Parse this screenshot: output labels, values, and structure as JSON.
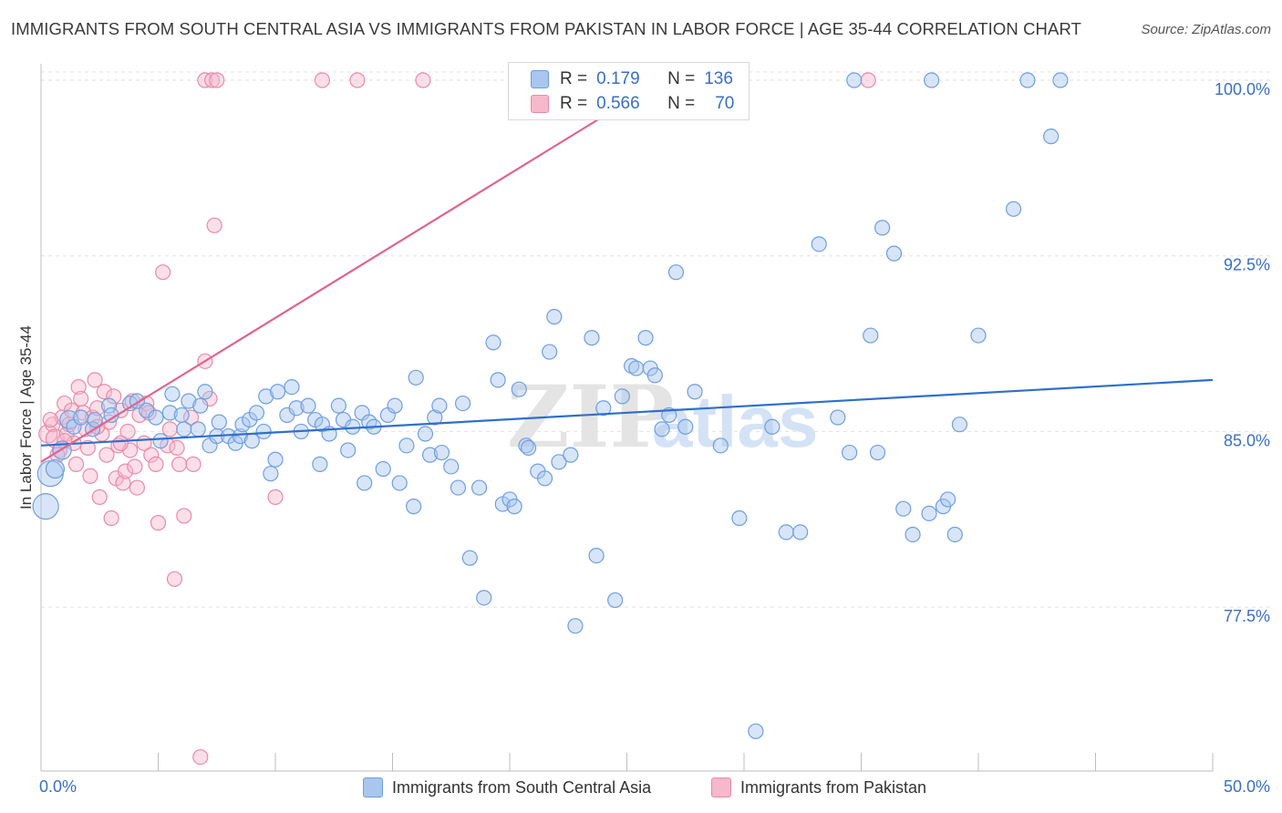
{
  "header": {
    "title": "IMMIGRANTS FROM SOUTH CENTRAL ASIA VS IMMIGRANTS FROM PAKISTAN IN LABOR FORCE | AGE 35-44 CORRELATION CHART",
    "source": "Source: ZipAtlas.com"
  },
  "watermark": {
    "zip": "ZIP",
    "atlas": "atlas"
  },
  "stats_legend": {
    "r_label": "R =",
    "n_label": "N =",
    "blue": {
      "r": "0.179",
      "n": "136"
    },
    "pink": {
      "r": "0.566",
      "n": "70"
    }
  },
  "colors": {
    "blue_fill": "#a9c6ef",
    "blue_stroke": "#6e9fe0",
    "blue_line": "#2f6fcc",
    "pink_fill": "#f6b8cb",
    "pink_stroke": "#ea8aa9",
    "pink_line": "#e0648e",
    "tick_text": "#3a6fc4",
    "grid": "#e2e2e2"
  },
  "chart_data": {
    "type": "scatter",
    "title": "IMMIGRANTS FROM SOUTH CENTRAL ASIA VS IMMIGRANTS FROM PAKISTAN IN LABOR FORCE | AGE 35-44 CORRELATION CHART",
    "xlabel": "",
    "ylabel": "In Labor Force | Age 35-44",
    "xlim": [
      0,
      50
    ],
    "ylim": [
      70.5,
      100.7
    ],
    "x_tick_labels": [
      "0.0%",
      "50.0%"
    ],
    "y_ticks": [
      77.5,
      85.0,
      92.5,
      100.0
    ],
    "y_tick_labels": [
      "77.5%",
      "85.0%",
      "92.5%",
      "100.0%"
    ],
    "grid": "horizontal dashed",
    "legend_position": "top-center and bottom",
    "series": [
      {
        "name": "Immigrants from South Central Asia",
        "color": "#6e9fe0",
        "r": 0.179,
        "n": 136,
        "trend": {
          "x": [
            0,
            50
          ],
          "y": [
            84.4,
            87.2
          ]
        },
        "points": [
          [
            0.2,
            81.8,
            2
          ],
          [
            0.4,
            83.2,
            2
          ],
          [
            0.6,
            83.4,
            1
          ],
          [
            0.9,
            84.2,
            1
          ],
          [
            1.2,
            85.5,
            1
          ],
          [
            1.4,
            85.2,
            0
          ],
          [
            1.7,
            85.6,
            0
          ],
          [
            2.2,
            85.1,
            0
          ],
          [
            2.3,
            85.5,
            0
          ],
          [
            2.9,
            86.1,
            0
          ],
          [
            3.0,
            85.7,
            0
          ],
          [
            3.8,
            86.2,
            0
          ],
          [
            4.1,
            86.3,
            0
          ],
          [
            4.5,
            85.9,
            0
          ],
          [
            4.9,
            85.6,
            0
          ],
          [
            5.1,
            84.6,
            0
          ],
          [
            5.5,
            85.8,
            0
          ],
          [
            5.6,
            86.6,
            0
          ],
          [
            6.0,
            85.7,
            0
          ],
          [
            6.1,
            85.1,
            0
          ],
          [
            6.3,
            86.3,
            0
          ],
          [
            6.7,
            85.1,
            0
          ],
          [
            6.8,
            86.1,
            0
          ],
          [
            7.0,
            86.7,
            0
          ],
          [
            7.2,
            84.4,
            0
          ],
          [
            7.5,
            84.8,
            0
          ],
          [
            7.6,
            85.4,
            0
          ],
          [
            8.0,
            84.8,
            0
          ],
          [
            8.3,
            84.5,
            0
          ],
          [
            8.5,
            84.8,
            0
          ],
          [
            8.6,
            85.3,
            0
          ],
          [
            8.9,
            85.5,
            0
          ],
          [
            9.0,
            84.6,
            0
          ],
          [
            9.2,
            85.8,
            0
          ],
          [
            9.5,
            85.0,
            0
          ],
          [
            9.6,
            86.5,
            0
          ],
          [
            9.8,
            83.2,
            0
          ],
          [
            10.0,
            83.8,
            0
          ],
          [
            10.1,
            86.7,
            0
          ],
          [
            10.5,
            85.7,
            0
          ],
          [
            10.7,
            86.9,
            0
          ],
          [
            10.9,
            86.0,
            0
          ],
          [
            11.1,
            85.0,
            0
          ],
          [
            11.4,
            86.1,
            0
          ],
          [
            11.7,
            85.5,
            0
          ],
          [
            11.9,
            83.6,
            0
          ],
          [
            12.0,
            85.3,
            0
          ],
          [
            12.3,
            84.9,
            0
          ],
          [
            12.7,
            86.1,
            0
          ],
          [
            12.9,
            85.5,
            0
          ],
          [
            13.1,
            84.2,
            0
          ],
          [
            13.3,
            85.2,
            0
          ],
          [
            13.7,
            85.8,
            0
          ],
          [
            13.8,
            82.8,
            0
          ],
          [
            14.0,
            85.4,
            0
          ],
          [
            14.2,
            85.2,
            0
          ],
          [
            14.6,
            83.4,
            0
          ],
          [
            14.8,
            85.7,
            0
          ],
          [
            15.1,
            86.1,
            0
          ],
          [
            15.3,
            82.8,
            0
          ],
          [
            15.6,
            84.4,
            0
          ],
          [
            15.9,
            81.8,
            0
          ],
          [
            16.0,
            87.3,
            0
          ],
          [
            16.4,
            84.9,
            0
          ],
          [
            16.6,
            84.0,
            0
          ],
          [
            16.8,
            85.6,
            0
          ],
          [
            17.0,
            86.1,
            0
          ],
          [
            17.1,
            84.1,
            0
          ],
          [
            17.5,
            83.5,
            0
          ],
          [
            17.8,
            82.6,
            0
          ],
          [
            18.0,
            86.2,
            0
          ],
          [
            18.3,
            79.6,
            0
          ],
          [
            18.7,
            82.6,
            0
          ],
          [
            18.9,
            77.9,
            0
          ],
          [
            19.3,
            88.8,
            0
          ],
          [
            19.5,
            87.2,
            0
          ],
          [
            19.7,
            81.9,
            0
          ],
          [
            20.0,
            82.1,
            0
          ],
          [
            20.2,
            81.8,
            0
          ],
          [
            20.4,
            86.8,
            0
          ],
          [
            20.7,
            84.4,
            0
          ],
          [
            20.8,
            84.3,
            0
          ],
          [
            21.2,
            83.3,
            0
          ],
          [
            21.5,
            83.0,
            0
          ],
          [
            21.7,
            88.4,
            0
          ],
          [
            21.9,
            89.9,
            0
          ],
          [
            22.1,
            83.7,
            0
          ],
          [
            22.6,
            84.0,
            0
          ],
          [
            22.8,
            76.7,
            0
          ],
          [
            23.5,
            89.0,
            0
          ],
          [
            23.7,
            79.7,
            0
          ],
          [
            24.0,
            86.0,
            0
          ],
          [
            24.5,
            77.8,
            0
          ],
          [
            24.8,
            86.5,
            0
          ],
          [
            25.2,
            87.8,
            0
          ],
          [
            25.4,
            87.7,
            0
          ],
          [
            25.8,
            89.0,
            0
          ],
          [
            26.0,
            87.7,
            0
          ],
          [
            26.2,
            87.4,
            0
          ],
          [
            26.5,
            85.1,
            0
          ],
          [
            26.8,
            85.7,
            0
          ],
          [
            27.1,
            91.8,
            0
          ],
          [
            27.5,
            85.2,
            0
          ],
          [
            27.9,
            86.7,
            0
          ],
          [
            28.2,
            100.0,
            0
          ],
          [
            29.0,
            84.4,
            0
          ],
          [
            29.8,
            81.3,
            0
          ],
          [
            30.5,
            72.2,
            0
          ],
          [
            31.2,
            85.2,
            0
          ],
          [
            31.8,
            80.7,
            0
          ],
          [
            32.4,
            80.7,
            0
          ],
          [
            33.2,
            93.0,
            0
          ],
          [
            34.0,
            85.6,
            0
          ],
          [
            34.7,
            100.0,
            0
          ],
          [
            35.4,
            89.1,
            0
          ],
          [
            35.7,
            84.1,
            0
          ],
          [
            35.9,
            93.7,
            0
          ],
          [
            36.4,
            92.6,
            0
          ],
          [
            36.8,
            81.7,
            0
          ],
          [
            37.2,
            80.6,
            0
          ],
          [
            37.9,
            81.5,
            0
          ],
          [
            38.0,
            100.0,
            0
          ],
          [
            38.5,
            81.8,
            0
          ],
          [
            38.7,
            82.1,
            0
          ],
          [
            39.0,
            80.6,
            0
          ],
          [
            39.2,
            85.3,
            0
          ],
          [
            40.0,
            89.1,
            0
          ],
          [
            41.5,
            94.5,
            0
          ],
          [
            42.1,
            100.0,
            0
          ],
          [
            43.1,
            97.6,
            0
          ],
          [
            43.5,
            100.0,
            0
          ],
          [
            34.5,
            84.1,
            0
          ]
        ]
      },
      {
        "name": "Immigrants from Pakistan",
        "color": "#ea8aa9",
        "r": 0.566,
        "n": 70,
        "trend": {
          "x": [
            0,
            26.5
          ],
          "y": [
            83.7,
            100.0
          ]
        },
        "points": [
          [
            0.3,
            84.9,
            1
          ],
          [
            0.5,
            85.3,
            0
          ],
          [
            0.6,
            84.7,
            1
          ],
          [
            0.8,
            84.2,
            0
          ],
          [
            0.9,
            85.6,
            0
          ],
          [
            1.0,
            86.2,
            0
          ],
          [
            1.1,
            84.9,
            0
          ],
          [
            1.2,
            85.3,
            0
          ],
          [
            1.3,
            85.9,
            0
          ],
          [
            1.4,
            84.5,
            0
          ],
          [
            1.5,
            83.6,
            0
          ],
          [
            1.6,
            86.9,
            0
          ],
          [
            1.7,
            86.4,
            0
          ],
          [
            1.8,
            85.8,
            0
          ],
          [
            1.9,
            85.1,
            0
          ],
          [
            2.0,
            84.3,
            0
          ],
          [
            2.1,
            83.1,
            0
          ],
          [
            2.2,
            85.6,
            0
          ],
          [
            2.3,
            87.2,
            0
          ],
          [
            2.4,
            86.0,
            0
          ],
          [
            2.5,
            82.2,
            0
          ],
          [
            2.6,
            84.9,
            0
          ],
          [
            2.7,
            86.7,
            0
          ],
          [
            2.8,
            84.0,
            0
          ],
          [
            2.9,
            85.4,
            0
          ],
          [
            3.0,
            81.3,
            0
          ],
          [
            3.1,
            86.5,
            0
          ],
          [
            3.2,
            83.0,
            0
          ],
          [
            3.3,
            84.4,
            0
          ],
          [
            3.4,
            85.9,
            0
          ],
          [
            3.5,
            82.8,
            0
          ],
          [
            3.6,
            83.3,
            0
          ],
          [
            3.7,
            85.0,
            0
          ],
          [
            3.8,
            84.2,
            0
          ],
          [
            3.9,
            86.3,
            0
          ],
          [
            4.0,
            83.5,
            0
          ],
          [
            4.1,
            82.6,
            0
          ],
          [
            4.2,
            85.7,
            0
          ],
          [
            4.4,
            84.5,
            0
          ],
          [
            4.5,
            86.2,
            0
          ],
          [
            4.7,
            84.0,
            0
          ],
          [
            4.9,
            83.6,
            0
          ],
          [
            5.0,
            81.1,
            0
          ],
          [
            5.2,
            91.8,
            0
          ],
          [
            5.4,
            84.4,
            0
          ],
          [
            5.5,
            85.1,
            0
          ],
          [
            5.7,
            78.7,
            0
          ],
          [
            5.9,
            83.6,
            0
          ],
          [
            6.1,
            81.4,
            0
          ],
          [
            6.4,
            85.6,
            0
          ],
          [
            6.5,
            83.6,
            0
          ],
          [
            6.8,
            71.1,
            0
          ],
          [
            7.0,
            88.0,
            0
          ],
          [
            7.2,
            86.4,
            0
          ],
          [
            7.4,
            93.8,
            0
          ],
          [
            7.0,
            100.0,
            0
          ],
          [
            7.3,
            100.0,
            0
          ],
          [
            7.5,
            100.0,
            0
          ],
          [
            10.0,
            82.2,
            0
          ],
          [
            12.0,
            100.0,
            0
          ],
          [
            13.5,
            100.0,
            0
          ],
          [
            16.3,
            100.0,
            0
          ],
          [
            35.3,
            100.0,
            0
          ],
          [
            0.4,
            85.5,
            0
          ],
          [
            1.0,
            84.6,
            0
          ],
          [
            2.4,
            85.2,
            0
          ],
          [
            3.4,
            84.5,
            0
          ],
          [
            4.6,
            85.8,
            0
          ],
          [
            5.8,
            84.3,
            0
          ],
          [
            0.7,
            84.0,
            0
          ]
        ]
      }
    ]
  },
  "bottom_legend": {
    "blue_label": "Immigrants from South Central Asia",
    "pink_label": "Immigrants from Pakistan"
  }
}
